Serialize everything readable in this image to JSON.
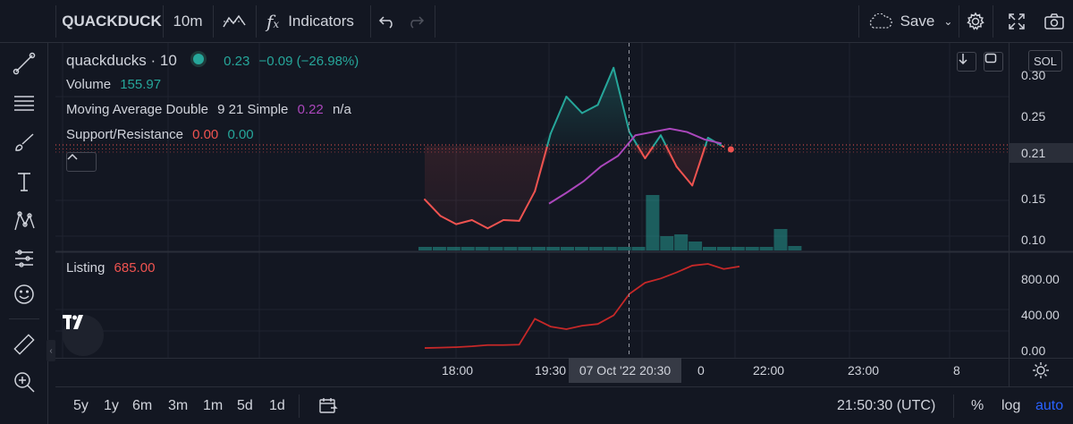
{
  "toolbar": {
    "symbol": "QUACKDUCK",
    "interval": "10m",
    "chart_type_icon": "chart-type-icon",
    "indicators_label": "Indicators",
    "save_label": "Save"
  },
  "legend": {
    "main": {
      "name": "quackducks · 10",
      "price": "0.23",
      "change": "−0.09 (−26.98%)"
    },
    "volume": {
      "name": "Volume",
      "value": "155.97"
    },
    "ma": {
      "name": "Moving Average Double",
      "params": "9 21 Simple",
      "value1": "0.22",
      "value2": "n/a"
    },
    "sr": {
      "name": "Support/Resistance",
      "value1": "0.00",
      "value2": "0.00"
    },
    "listing": {
      "name": "Listing",
      "value": "685.00"
    }
  },
  "price_axis": {
    "badge": "SOL",
    "ticks": [
      "0.30",
      "0.25",
      "0.15",
      "0.10"
    ],
    "current": "0.21"
  },
  "listing_axis": {
    "ticks": [
      "800.00",
      "400.00",
      "0.00"
    ]
  },
  "time_axis": {
    "ticks": [
      "18:00",
      "19:30",
      "20:30",
      "0",
      "22:00",
      "23:00",
      "8"
    ],
    "crosshair": "07 Oct '22  20:30"
  },
  "bottombar": {
    "ranges": [
      "5y",
      "1y",
      "6m",
      "3m",
      "1m",
      "5d",
      "1d"
    ],
    "clock": "21:50:30 (UTC)",
    "percent": "%",
    "log": "log",
    "auto": "auto"
  },
  "colors": {
    "up": "#26a69a",
    "down": "#ef5350",
    "ma": "#ab47bc",
    "listing": "#c62828",
    "accent": "#2962ff"
  },
  "chart_data": [
    {
      "type": "line",
      "series": [
        {
          "values": [
            0.15,
            0.13,
            0.12,
            0.125,
            0.115,
            0.125,
            0.124,
            0.16,
            0.23,
            0.275,
            0.255,
            0.265,
            0.31,
            0.232,
            0.2,
            0.228,
            0.19,
            0.167,
            0.225,
            0.214
          ]
        },
        {
          "values": [
            0.145,
            0.158,
            0.172,
            0.19,
            0.203,
            0.228,
            0.232,
            0.236,
            0.232,
            0.223,
            0.218
          ]
        }
      ],
      "volume": [
        4,
        4,
        4,
        4,
        4,
        4,
        4,
        4,
        4,
        4,
        4,
        4,
        4,
        4,
        4,
        4,
        62,
        16,
        18,
        10,
        4,
        4,
        4,
        4,
        4,
        24,
        5
      ],
      "ylim": [
        0.085,
        0.32
      ]
    },
    {
      "type": "line",
      "values": [
        20,
        25,
        30,
        40,
        55,
        55,
        60,
        360,
        270,
        240,
        280,
        300,
        400,
        650,
        780,
        830,
        900,
        980,
        1000,
        940,
        970
      ],
      "ylim": [
        0,
        1050
      ]
    }
  ]
}
